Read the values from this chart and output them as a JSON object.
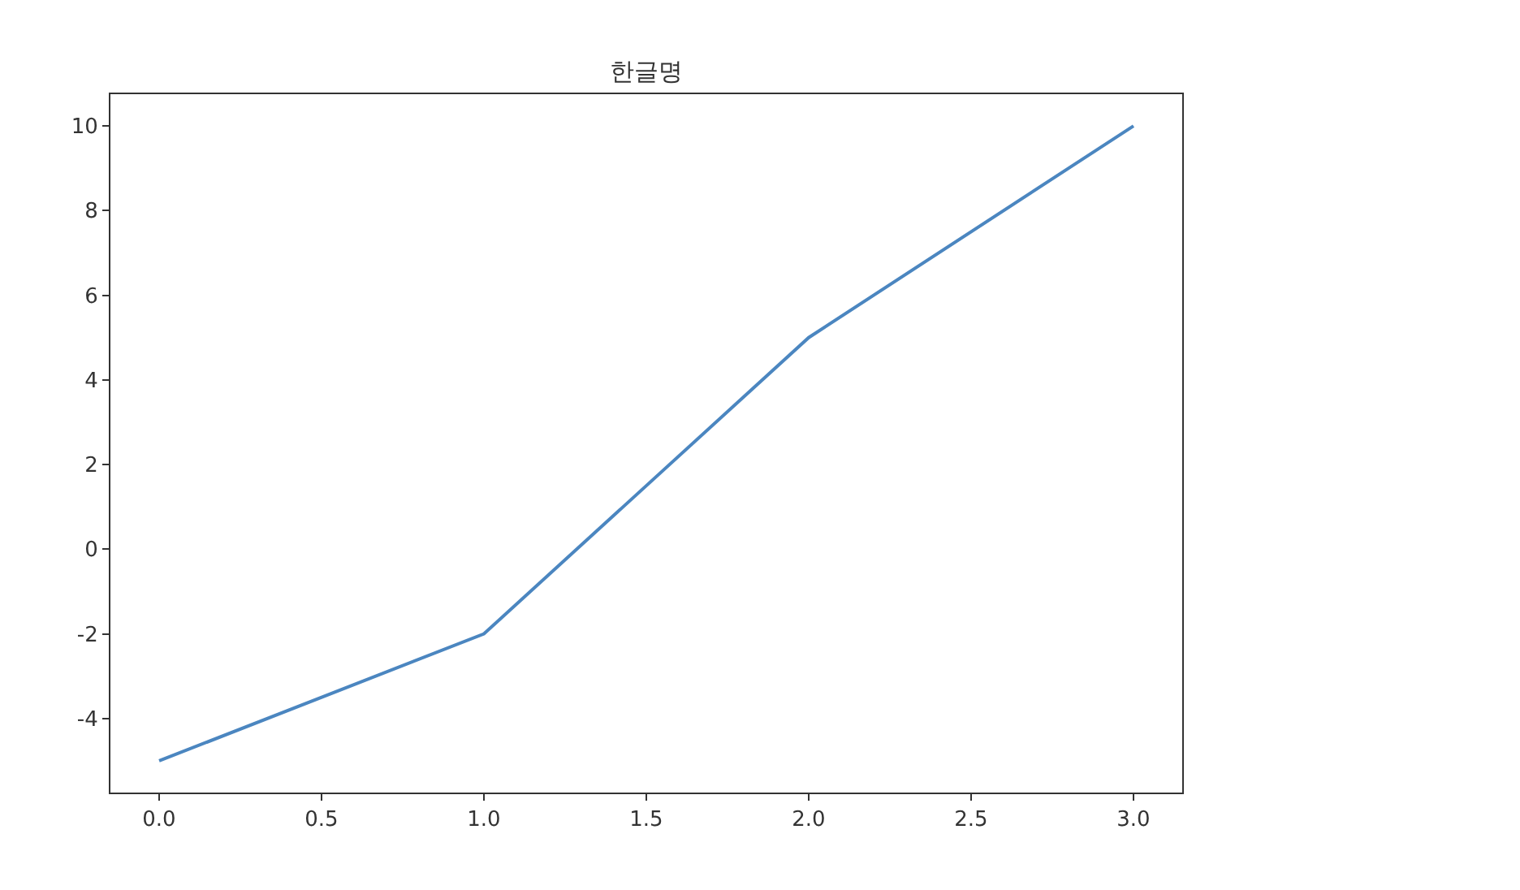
{
  "chart_data": {
    "type": "line",
    "title": "한글명",
    "x": [
      0,
      1,
      2,
      3
    ],
    "series": [
      {
        "color": "#4b86c0",
        "values": [
          -5,
          -2,
          5,
          10
        ]
      }
    ],
    "xlim": [
      -0.15,
      3.15
    ],
    "xticks": [
      {
        "value": 0,
        "label": "0.0"
      },
      0.5,
      {
        "value": 1,
        "label": "1.0"
      },
      1.5,
      {
        "value": 2,
        "label": "2.0"
      },
      2.5,
      {
        "value": 3,
        "label": "3.0"
      }
    ],
    "ylim": [
      -5.75,
      10.75
    ],
    "yticks": [
      -4,
      -2,
      0,
      2,
      4,
      6,
      8,
      10
    ],
    "marker": "none",
    "line_style": "solid"
  }
}
